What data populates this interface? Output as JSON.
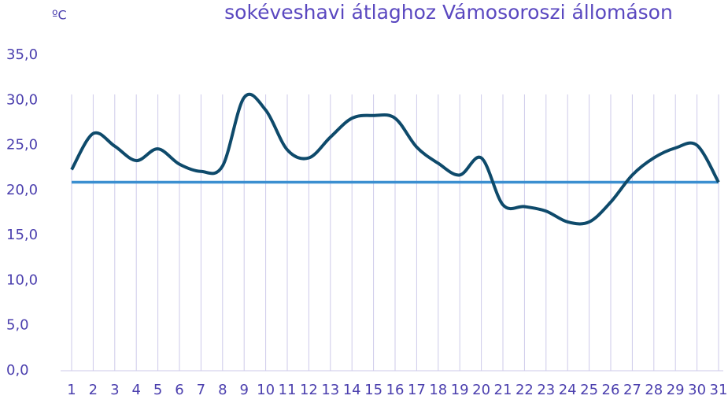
{
  "chart_data": {
    "type": "line",
    "title": "sokéveshavi átlaghoz Vámosoroszi állomáson",
    "unit_label": "ºC",
    "categories": [
      "1",
      "2",
      "3",
      "4",
      "5",
      "6",
      "7",
      "8",
      "9",
      "10",
      "11",
      "12",
      "13",
      "14",
      "15",
      "16",
      "17",
      "18",
      "19",
      "20",
      "21",
      "22",
      "23",
      "24",
      "25",
      "26",
      "27",
      "28",
      "29",
      "30",
      "31"
    ],
    "series": [
      {
        "color": "#0e4a6b",
        "values": [
          22.3,
          26.3,
          24.9,
          23.3,
          24.6,
          22.9,
          22.1,
          22.7,
          30.3,
          28.9,
          24.5,
          23.6,
          25.9,
          28.0,
          28.3,
          28.0,
          24.8,
          23.0,
          21.7,
          23.6,
          18.4,
          18.2,
          17.7,
          16.5,
          16.5,
          18.7,
          21.7,
          23.6,
          24.7,
          25.0,
          20.9
        ]
      },
      {
        "color": "#3b8fd0",
        "values": [
          20.9,
          20.9,
          20.9,
          20.9,
          20.9,
          20.9,
          20.9,
          20.9,
          20.9,
          20.9,
          20.9,
          20.9,
          20.9,
          20.9,
          20.9,
          20.9,
          20.9,
          20.9,
          20.9,
          20.9,
          20.9,
          20.9,
          20.9,
          20.9,
          20.9,
          20.9,
          20.9,
          20.9,
          20.9,
          20.9,
          20.9
        ]
      }
    ],
    "ylim": [
      0,
      35
    ],
    "yticks": [
      {
        "value": 0,
        "label": "0,0"
      },
      {
        "value": 5,
        "label": "5,0"
      },
      {
        "value": 10,
        "label": "10,0"
      },
      {
        "value": 15,
        "label": "15,0"
      },
      {
        "value": 20,
        "label": "20,0"
      },
      {
        "value": 25,
        "label": "25,0"
      },
      {
        "value": 30,
        "label": "30,0"
      },
      {
        "value": 35,
        "label": "35,0"
      }
    ],
    "grid": "x"
  }
}
